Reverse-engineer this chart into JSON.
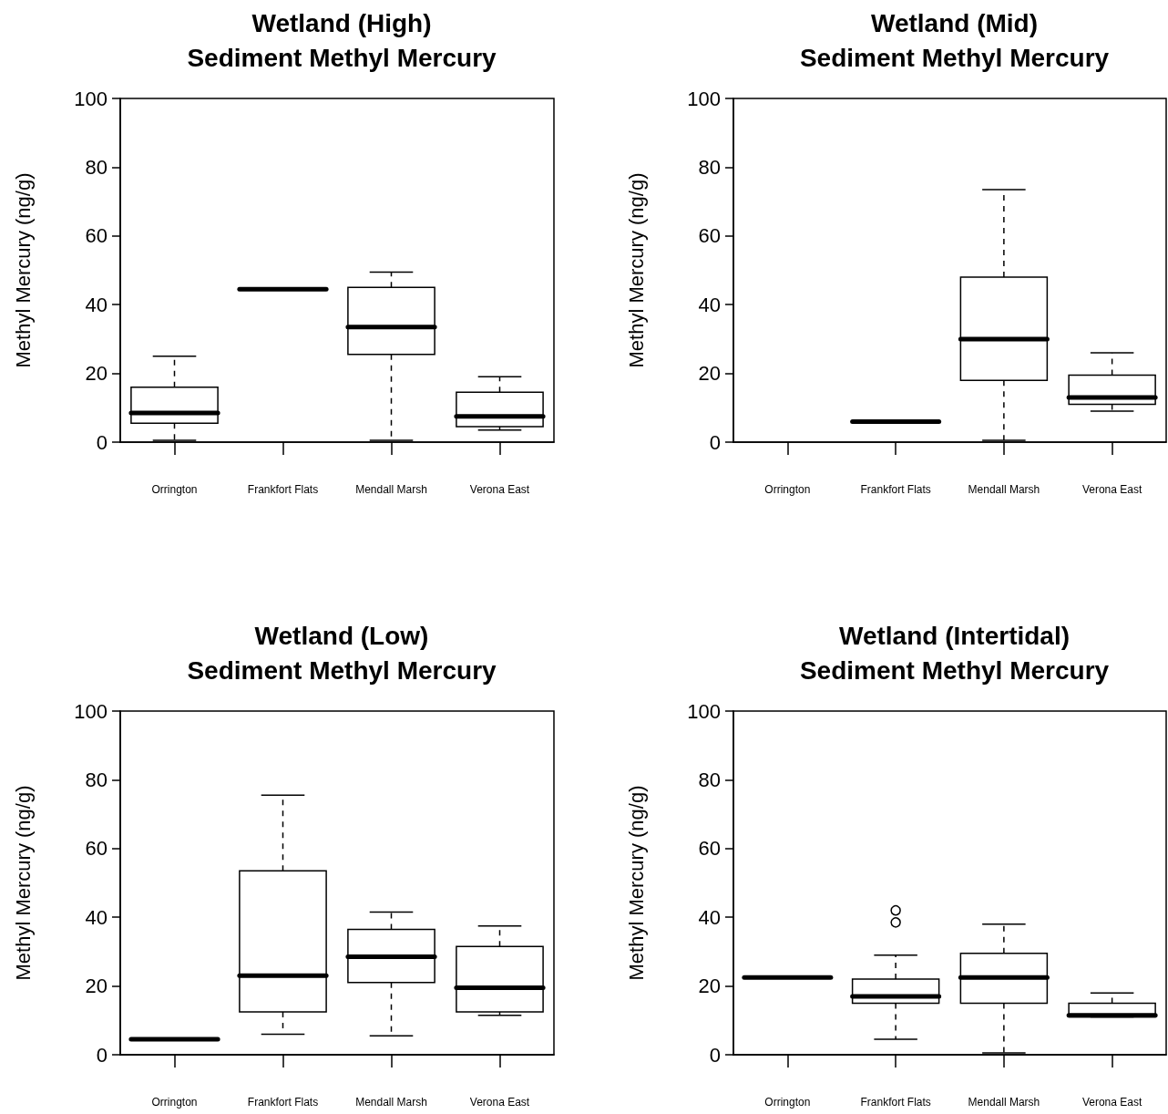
{
  "chart_data": [
    {
      "type": "box",
      "title": "Wetland (High)",
      "subtitle": "Sediment Methyl Mercury",
      "ylabel": "Methyl Mercury (ng/g)",
      "categories": [
        "Orrington",
        "Frankfort Flats",
        "Mendall Marsh",
        "Verona East"
      ],
      "ylim": [
        0,
        100
      ],
      "yticks": [
        0,
        20,
        40,
        60,
        80,
        100
      ],
      "boxes": [
        {
          "low": 0.5,
          "q1": 5.5,
          "median": 8.5,
          "q3": 16,
          "high": 25
        },
        {
          "low": 44.5,
          "q1": 44.5,
          "median": 44.5,
          "q3": 44.5,
          "high": 44.5
        },
        {
          "low": 0.5,
          "q1": 25.5,
          "median": 33.5,
          "q3": 45,
          "high": 49.5
        },
        {
          "low": 3.5,
          "q1": 4.5,
          "median": 7.5,
          "q3": 14.5,
          "high": 19
        }
      ]
    },
    {
      "type": "box",
      "title": "Wetland (Mid)",
      "subtitle": "Sediment Methyl Mercury",
      "ylabel": "Methyl Mercury (ng/g)",
      "categories": [
        "Orrington",
        "Frankfort Flats",
        "Mendall Marsh",
        "Verona East"
      ],
      "ylim": [
        0,
        100
      ],
      "yticks": [
        0,
        20,
        40,
        60,
        80,
        100
      ],
      "boxes": [
        null,
        {
          "low": 6,
          "q1": 6,
          "median": 6,
          "q3": 6,
          "high": 6
        },
        {
          "low": 0.5,
          "q1": 18,
          "median": 30,
          "q3": 48,
          "high": 73.5
        },
        {
          "low": 9,
          "q1": 11,
          "median": 13,
          "q3": 19.5,
          "high": 26
        }
      ]
    },
    {
      "type": "box",
      "title": "Wetland (Low)",
      "subtitle": "Sediment Methyl Mercury",
      "ylabel": "Methyl Mercury (ng/g)",
      "categories": [
        "Orrington",
        "Frankfort Flats",
        "Mendall Marsh",
        "Verona East"
      ],
      "ylim": [
        0,
        100
      ],
      "yticks": [
        0,
        20,
        40,
        60,
        80,
        100
      ],
      "boxes": [
        {
          "low": 4.5,
          "q1": 4.5,
          "median": 4.5,
          "q3": 4.5,
          "high": 4.5
        },
        {
          "low": 6,
          "q1": 12.5,
          "median": 23,
          "q3": 53.5,
          "high": 75.5
        },
        {
          "low": 5.5,
          "q1": 21,
          "median": 28.5,
          "q3": 36.5,
          "high": 41.5
        },
        {
          "low": 11.5,
          "q1": 12.5,
          "median": 19.5,
          "q3": 31.5,
          "high": 37.5
        }
      ]
    },
    {
      "type": "box",
      "title": "Wetland (Intertidal)",
      "subtitle": "Sediment Methyl Mercury",
      "ylabel": "Methyl Mercury (ng/g)",
      "categories": [
        "Orrington",
        "Frankfort Flats",
        "Mendall Marsh",
        "Verona East"
      ],
      "ylim": [
        0,
        100
      ],
      "yticks": [
        0,
        20,
        40,
        60,
        80,
        100
      ],
      "boxes": [
        {
          "low": 22.5,
          "q1": 22.5,
          "median": 22.5,
          "q3": 22.5,
          "high": 22.5
        },
        {
          "low": 4.5,
          "q1": 15,
          "median": 17,
          "q3": 22,
          "high": 29,
          "outliers": [
            38.5,
            42
          ]
        },
        {
          "low": 0.5,
          "q1": 15,
          "median": 22.5,
          "q3": 29.5,
          "high": 38
        },
        {
          "low": 11,
          "q1": 11,
          "median": 11.5,
          "q3": 15,
          "high": 18
        }
      ]
    }
  ]
}
